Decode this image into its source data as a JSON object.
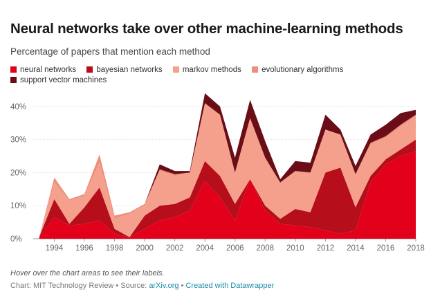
{
  "chart_data": {
    "type": "area",
    "stacked": true,
    "title": "Neural networks take over other machine-learning methods",
    "subtitle": "Percentage of papers that mention each method",
    "xlabel": "",
    "ylabel": "",
    "ylim": [
      0,
      45
    ],
    "xlim": [
      1992.6,
      2018
    ],
    "y_ticks": [
      0,
      10,
      20,
      30,
      40
    ],
    "y_tick_labels": [
      "0%",
      "10%",
      "20%",
      "30%",
      "40%"
    ],
    "x_ticks": [
      1994,
      1996,
      1998,
      2000,
      2002,
      2004,
      2006,
      2008,
      2010,
      2012,
      2014,
      2016,
      2018
    ],
    "x_tick_labels": [
      "1994",
      "1996",
      "1998",
      "2000",
      "2002",
      "2004",
      "2006",
      "2008",
      "2010",
      "2012",
      "2014",
      "2016",
      "2018"
    ],
    "grid": "horizontal",
    "legend": "top",
    "x": [
      1993,
      1994,
      1995,
      1996,
      1997,
      1998,
      1999,
      2000,
      2001,
      2002,
      2003,
      2004,
      2005,
      2006,
      2007,
      2008,
      2009,
      2010,
      2011,
      2012,
      2013,
      2014,
      2015,
      2016,
      2017,
      2018
    ],
    "series": [
      {
        "name": "neural networks",
        "color": "#e3001b",
        "values": [
          0.5,
          6.5,
          4.0,
          4.5,
          5.5,
          1.5,
          0.5,
          3.0,
          5.5,
          6.5,
          8.5,
          17.5,
          12.5,
          5.5,
          18.0,
          8.5,
          4.5,
          4.0,
          3.5,
          2.5,
          1.5,
          2.5,
          17.0,
          22.5,
          25.0,
          26.5
        ]
      },
      {
        "name": "bayesian networks",
        "color": "#b70e1c",
        "values": [
          0.0,
          5.5,
          0.5,
          5.0,
          10.0,
          1.5,
          0.0,
          4.0,
          4.5,
          4.0,
          4.0,
          6.0,
          6.5,
          5.0,
          0.0,
          1.5,
          1.5,
          5.0,
          4.5,
          17.5,
          20.0,
          7.0,
          2.0,
          1.5,
          2.0,
          3.5
        ]
      },
      {
        "name": "markov methods",
        "color": "#f5a08d",
        "values": [
          0.0,
          5.0,
          7.0,
          3.5,
          7.5,
          3.0,
          7.0,
          3.0,
          10.5,
          8.5,
          7.5,
          17.5,
          18.5,
          9.0,
          18.5,
          14.5,
          11.0,
          11.5,
          12.0,
          13.0,
          10.0,
          10.0,
          9.5,
          6.5,
          7.0,
          7.0
        ]
      },
      {
        "name": "evolutionary algorithms",
        "color": "#ef8f7b",
        "values": [
          0.0,
          1.5,
          0.5,
          0.5,
          2.5,
          1.0,
          0.5,
          0.5,
          0.5,
          0.5,
          0.0,
          0.0,
          0.0,
          0.5,
          0.0,
          0.0,
          0.0,
          0.0,
          0.0,
          0.0,
          0.0,
          0.0,
          0.5,
          0.5,
          0.5,
          0.5
        ]
      },
      {
        "name": "support vector machines",
        "color": "#6b0d17",
        "values": [
          0.0,
          0.0,
          0.0,
          0.0,
          0.0,
          0.0,
          0.0,
          0.0,
          1.5,
          1.0,
          0.5,
          3.0,
          2.5,
          4.5,
          5.5,
          5.0,
          1.0,
          3.0,
          3.0,
          4.5,
          1.5,
          2.5,
          2.5,
          3.5,
          3.5,
          1.5
        ]
      }
    ]
  },
  "footer": {
    "note": "Hover over the chart areas to see their labels.",
    "credit_prefix": "Chart: MIT Technology Review • Source: ",
    "source": "arXiv.org",
    "separator": " • ",
    "made_with": "Created with Datawrapper"
  }
}
